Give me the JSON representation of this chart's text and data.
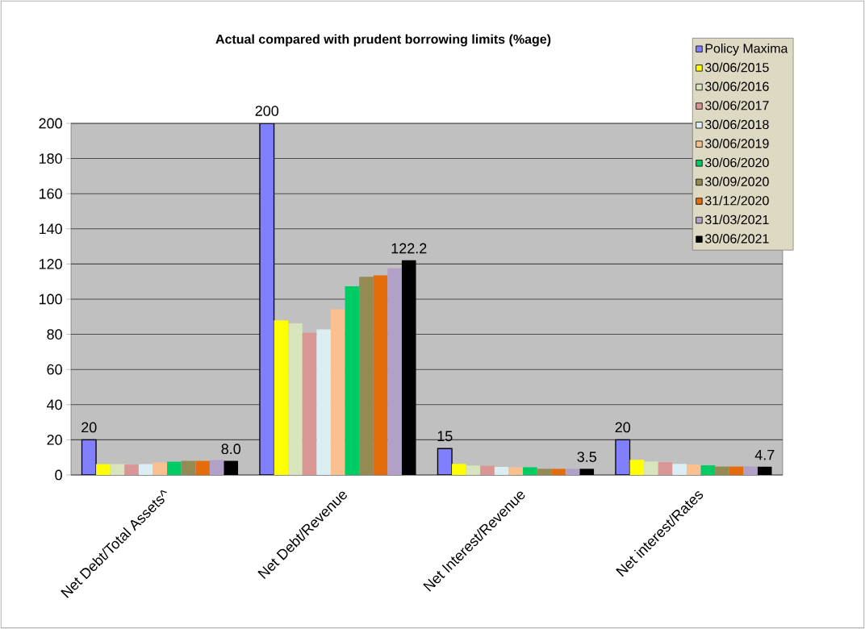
{
  "chart_data": {
    "type": "bar",
    "title": "Actual compared with prudent borrowing limits (%age)",
    "categories": [
      "Net Debt/Total Assets^",
      "Net Debt/Revenue",
      "Net Interest/Revenue",
      "Net interest/Rates"
    ],
    "series": [
      {
        "name": "Policy Maxima",
        "color": "#8080ff",
        "values": [
          20,
          200,
          15,
          20
        ],
        "value_labels": [
          "20",
          "200",
          "15",
          "20"
        ]
      },
      {
        "name": "30/06/2015",
        "color": "#ffff00",
        "values": [
          6.2,
          88,
          6.3,
          8.6
        ]
      },
      {
        "name": "30/06/2016",
        "color": "#d8e4bc",
        "values": [
          6.2,
          86.4,
          5.4,
          7.7
        ]
      },
      {
        "name": "30/06/2017",
        "color": "#da9694",
        "values": [
          5.8,
          81,
          5.2,
          7.2
        ]
      },
      {
        "name": "30/06/2018",
        "color": "#daeef3",
        "values": [
          6.2,
          82.9,
          4.6,
          6.3
        ]
      },
      {
        "name": "30/06/2019",
        "color": "#fac090",
        "values": [
          7.1,
          94.3,
          4.4,
          5.9
        ]
      },
      {
        "name": "30/06/2020",
        "color": "#00cc66",
        "values": [
          7.6,
          107.3,
          4.4,
          5.5
        ]
      },
      {
        "name": "30/09/2020",
        "color": "#948a54",
        "values": [
          8.0,
          112.7,
          3.5,
          4.8
        ]
      },
      {
        "name": "31/12/2020",
        "color": "#e46c0a",
        "values": [
          8.0,
          113.6,
          3.5,
          4.8
        ]
      },
      {
        "name": "31/03/2021",
        "color": "#b1a0c7",
        "values": [
          8.5,
          117.7,
          3.5,
          4.8
        ]
      },
      {
        "name": "30/06/2021",
        "color": "#000000",
        "values": [
          8.0,
          122.2,
          3.5,
          4.7
        ],
        "value_labels": [
          "8.0",
          "122.2",
          "3.5",
          "4.7"
        ]
      }
    ],
    "ylim": [
      0,
      200
    ],
    "yticks": [
      0,
      20,
      40,
      60,
      80,
      100,
      120,
      140,
      160,
      180,
      200
    ],
    "grid": "y",
    "legend": "top right"
  }
}
